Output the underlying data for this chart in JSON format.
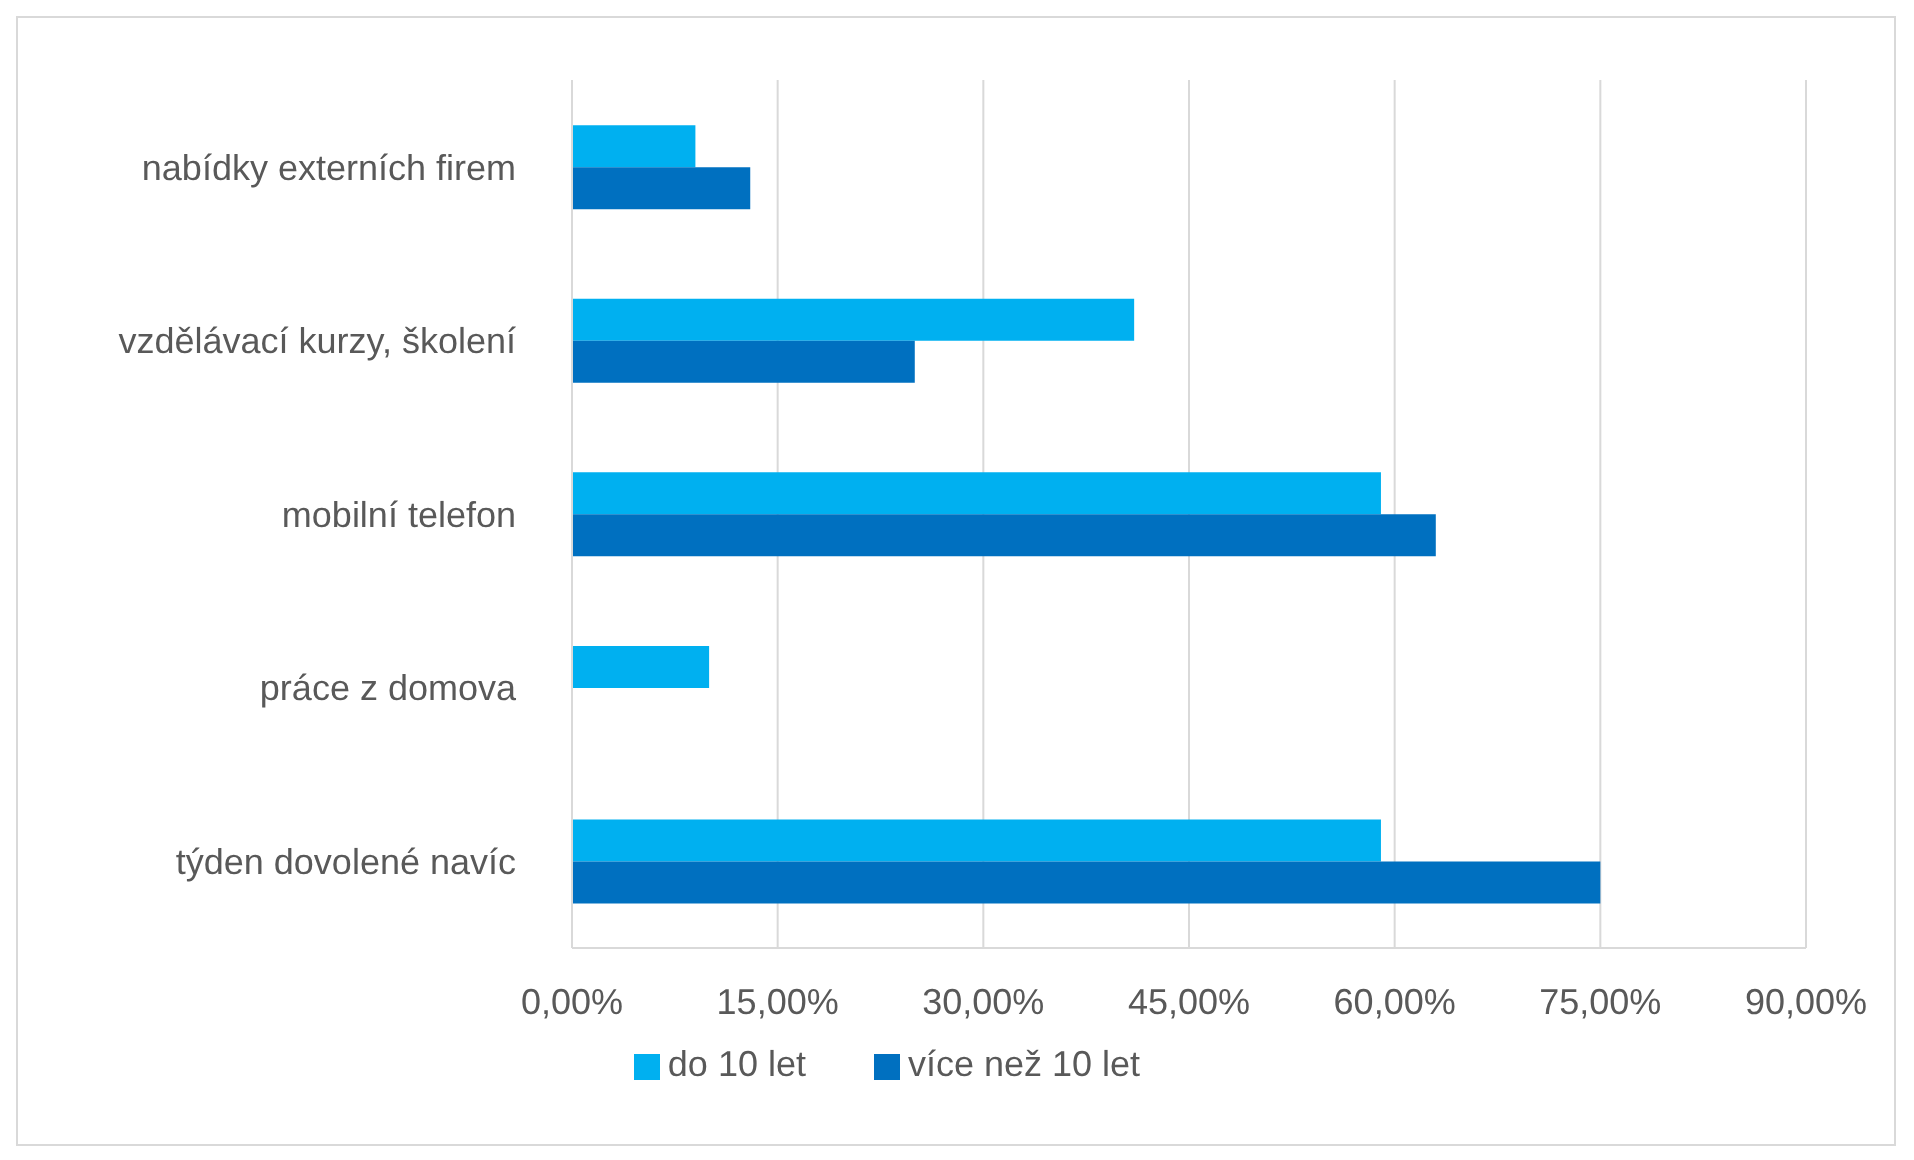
{
  "chart_data": {
    "type": "bar",
    "orientation": "horizontal",
    "categories": [
      "nabídky externích firem",
      "vzdělávací kurzy, školení",
      "mobilní telefon",
      "práce z domova",
      "týden dovolené navíc"
    ],
    "series": [
      {
        "name": "do 10 let",
        "color": "#00b0f0",
        "values": [
          9,
          41,
          59,
          10,
          59
        ]
      },
      {
        "name": "více než 10 let",
        "color": "#0070c0",
        "values": [
          13,
          25,
          63,
          0,
          75
        ]
      }
    ],
    "xlim": [
      0,
      90
    ],
    "xticks": [
      {
        "value": 0,
        "label": "0,00%"
      },
      {
        "value": 15,
        "label": "15,00%"
      },
      {
        "value": 30,
        "label": "30,00%"
      },
      {
        "value": 45,
        "label": "45,00%"
      },
      {
        "value": 60,
        "label": "60,00%"
      },
      {
        "value": 75,
        "label": "75,00%"
      },
      {
        "value": 90,
        "label": "90,00%"
      }
    ],
    "grid": "x",
    "legend": "bottom"
  }
}
